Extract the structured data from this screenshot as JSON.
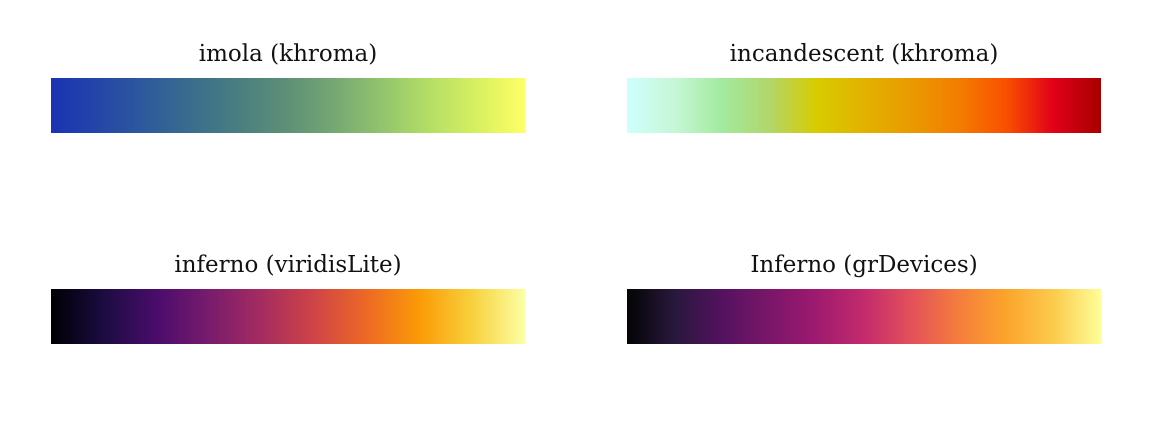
{
  "palettes": [
    {
      "title": "imola (khroma)",
      "colors": [
        "#1a33b3",
        "#2446a8",
        "#2e5a9c",
        "#3a6e8c",
        "#4a7f80",
        "#5e9076",
        "#76a873",
        "#93c46d",
        "#b5de66",
        "#d8f060",
        "#ffff66"
      ]
    },
    {
      "title": "incandescent (khroma)",
      "colors": [
        "#ceffff",
        "#c6f7d6",
        "#a3ea9f",
        "#b1d66b",
        "#d7cc00",
        "#e2b200",
        "#ea9a00",
        "#f37d00",
        "#f95000",
        "#e10018",
        "#a60000"
      ]
    },
    {
      "title": "inferno (viridisLite)",
      "colors": [
        "#000004",
        "#1b0c41",
        "#4a0c6b",
        "#781c6d",
        "#a52c60",
        "#cf4446",
        "#ed6925",
        "#fb9b06",
        "#f7d13d",
        "#fcffa4"
      ]
    },
    {
      "title": "Inferno (grDevices)",
      "colors": [
        "#040404",
        "#28183c",
        "#53125f",
        "#7a1669",
        "#9e1a6f",
        "#c32b6c",
        "#e3515a",
        "#f57d3c",
        "#fba42b",
        "#fbcb4d",
        "#fefe98"
      ]
    }
  ]
}
